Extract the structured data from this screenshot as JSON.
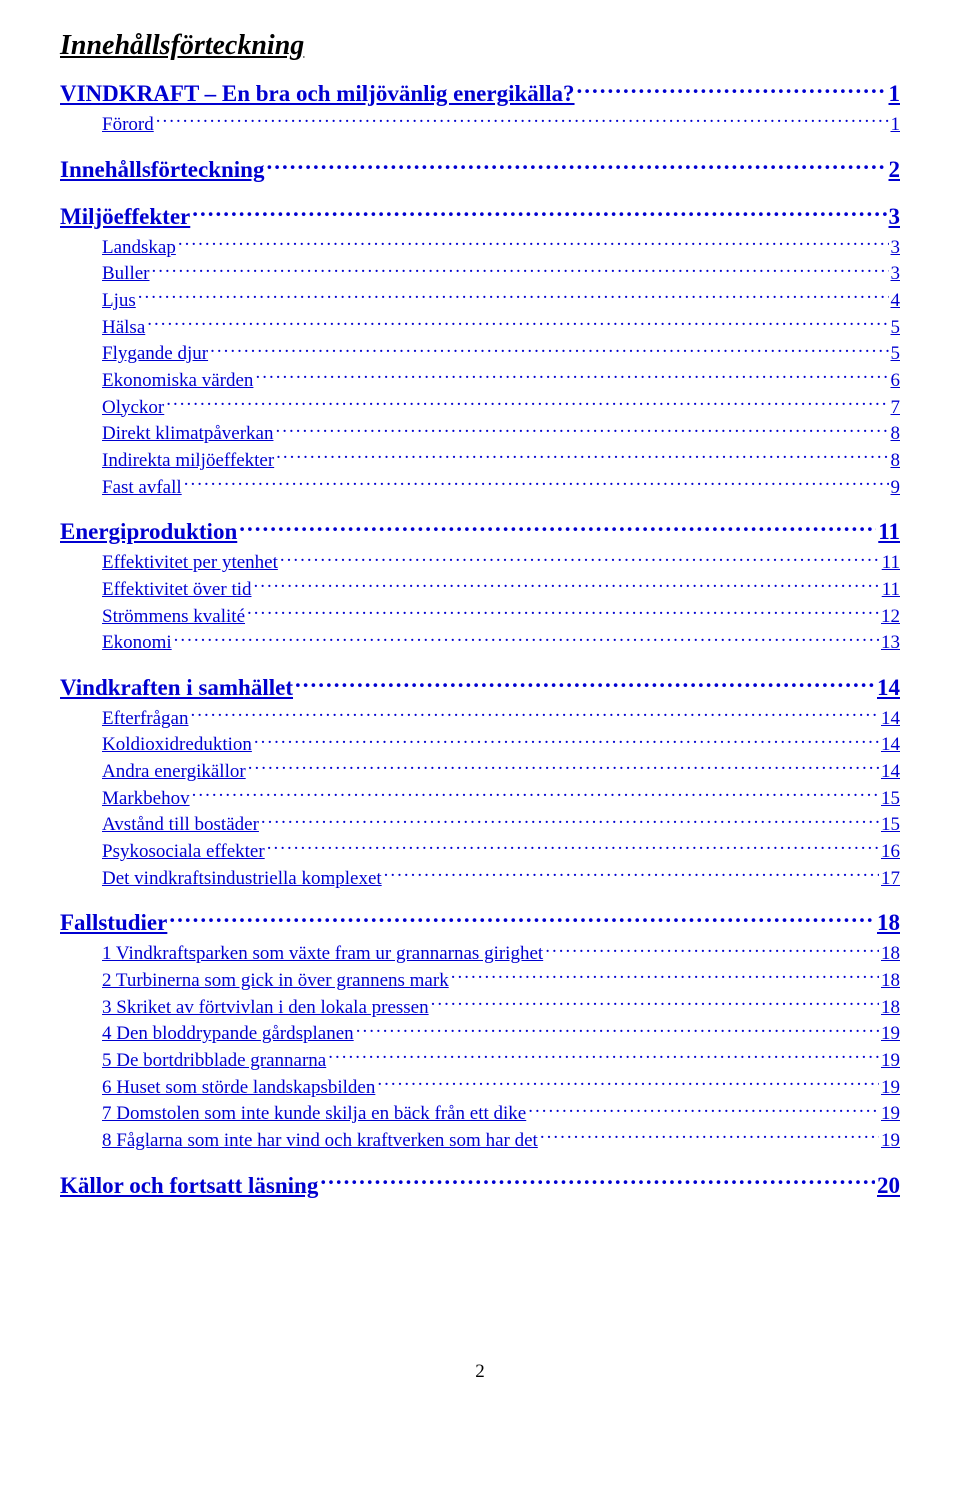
{
  "title": "Innehållsförteckning",
  "link_color": "#0000d0",
  "page_number": "2",
  "entries": [
    {
      "level": 0,
      "label": "VINDKRAFT – En bra och miljövänlig energikälla?",
      "page": "1"
    },
    {
      "level": 1,
      "label": "Förord",
      "page": "1"
    },
    {
      "level": 0,
      "label": "Innehållsförteckning",
      "page": "2"
    },
    {
      "level": 0,
      "label": "Miljöeffekter",
      "page": "3"
    },
    {
      "level": 1,
      "label": "Landskap",
      "page": "3"
    },
    {
      "level": 1,
      "label": "Buller",
      "page": "3"
    },
    {
      "level": 1,
      "label": "Ljus",
      "page": "4"
    },
    {
      "level": 1,
      "label": "Hälsa",
      "page": "5"
    },
    {
      "level": 1,
      "label": "Flygande djur",
      "page": "5"
    },
    {
      "level": 1,
      "label": "Ekonomiska värden",
      "page": "6"
    },
    {
      "level": 1,
      "label": "Olyckor",
      "page": "7"
    },
    {
      "level": 1,
      "label": "Direkt klimatpåverkan",
      "page": "8"
    },
    {
      "level": 1,
      "label": "Indirekta miljöeffekter",
      "page": "8"
    },
    {
      "level": 1,
      "label": "Fast avfall",
      "page": "9"
    },
    {
      "level": 0,
      "label": "Energiproduktion",
      "page": "11"
    },
    {
      "level": 1,
      "label": "Effektivitet per ytenhet",
      "page": "11"
    },
    {
      "level": 1,
      "label": "Effektivitet över tid",
      "page": "11"
    },
    {
      "level": 1,
      "label": "Strömmens kvalité",
      "page": "12"
    },
    {
      "level": 1,
      "label": "Ekonomi",
      "page": "13"
    },
    {
      "level": 0,
      "label": "Vindkraften i samhället",
      "page": "14"
    },
    {
      "level": 1,
      "label": "Efterfrågan",
      "page": "14"
    },
    {
      "level": 1,
      "label": "Koldioxidreduktion",
      "page": "14"
    },
    {
      "level": 1,
      "label": "Andra energikällor",
      "page": "14"
    },
    {
      "level": 1,
      "label": "Markbehov",
      "page": "15"
    },
    {
      "level": 1,
      "label": "Avstånd till bostäder",
      "page": "15"
    },
    {
      "level": 1,
      "label": "Psykosociala effekter",
      "page": "16"
    },
    {
      "level": 1,
      "label": "Det vindkraftsindustriella komplexet",
      "page": "17"
    },
    {
      "level": 0,
      "label": "Fallstudier",
      "page": "18"
    },
    {
      "level": 1,
      "label": "1 Vindkraftsparken som växte fram ur grannarnas girighet",
      "page": "18"
    },
    {
      "level": 1,
      "label": "2 Turbinerna som gick in över grannens mark",
      "page": "18"
    },
    {
      "level": 1,
      "label": "3 Skriket av förtvivlan i den lokala pressen",
      "page": "18"
    },
    {
      "level": 1,
      "label": "4 Den bloddrypande gårdsplanen",
      "page": "19"
    },
    {
      "level": 1,
      "label": "5 De bortdribblade grannarna",
      "page": "19"
    },
    {
      "level": 1,
      "label": "6 Huset som störde landskapsbilden",
      "page": "19"
    },
    {
      "level": 1,
      "label": "7 Domstolen som inte kunde skilja en bäck från ett dike",
      "page": "19"
    },
    {
      "level": 1,
      "label": "8 Fåglarna som inte har vind och kraftverken som har det",
      "page": "19"
    },
    {
      "level": 0,
      "label": "Källor och fortsatt läsning",
      "page": "20"
    }
  ]
}
